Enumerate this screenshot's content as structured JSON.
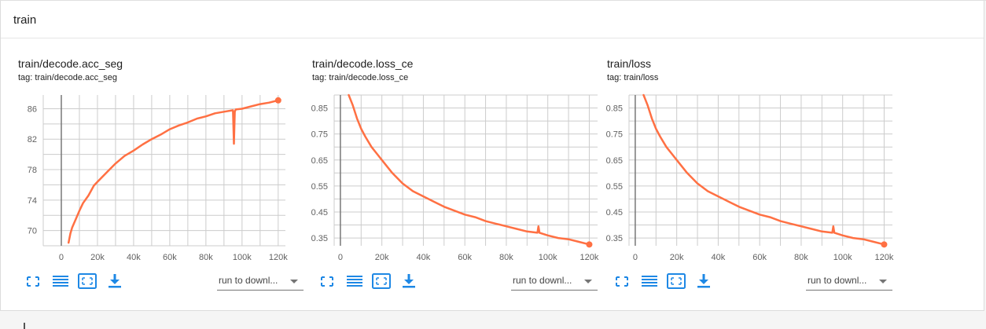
{
  "section": {
    "title": "train"
  },
  "colors": {
    "series": "#ff7043",
    "accent": "#1e88e5",
    "grid": "#cccccc",
    "axis_text": "#616161"
  },
  "icons": {
    "expand": "fullscreen-icon",
    "log_scale": "log-scale-icon",
    "fit_domain": "fit-domain-icon",
    "download": "download-icon"
  },
  "cards": [
    {
      "title": "train/decode.acc_seg",
      "tag": "tag: train/decode.acc_seg",
      "run_select": {
        "value": "run to downl..."
      }
    },
    {
      "title": "train/decode.loss_ce",
      "tag": "tag: train/decode.loss_ce",
      "run_select": {
        "value": "run to downl..."
      }
    },
    {
      "title": "train/loss",
      "tag": "tag: train/loss",
      "run_select": {
        "value": "run to downl..."
      }
    }
  ],
  "chart_data": [
    {
      "type": "line",
      "title": "train/decode.acc_seg",
      "xlim": [
        -10000,
        124000
      ],
      "ylim": [
        68,
        87.8
      ],
      "xticks": [
        0,
        20000,
        40000,
        60000,
        80000,
        100000,
        120000
      ],
      "xtick_labels": [
        "0",
        "20k",
        "40k",
        "60k",
        "80k",
        "100k",
        "120k"
      ],
      "yticks": [
        70,
        74,
        78,
        82,
        86
      ],
      "ytick_labels": [
        "70",
        "74",
        "78",
        "82",
        "86"
      ],
      "grid": true,
      "series": [
        {
          "color": "#ff7043",
          "x": [
            4000,
            5000,
            6000,
            8000,
            10000,
            12000,
            15000,
            18000,
            20000,
            25000,
            30000,
            35000,
            40000,
            45000,
            50000,
            55000,
            60000,
            65000,
            70000,
            75000,
            80000,
            85000,
            90000,
            95000,
            95500,
            96000,
            96500,
            100000,
            105000,
            110000,
            115000,
            120000
          ],
          "y": [
            68.4,
            69.6,
            70.4,
            71.5,
            72.6,
            73.6,
            74.6,
            75.9,
            76.4,
            77.6,
            78.8,
            79.8,
            80.5,
            81.3,
            82.0,
            82.6,
            83.3,
            83.8,
            84.2,
            84.7,
            85.0,
            85.4,
            85.6,
            85.8,
            81.4,
            85.6,
            85.9,
            86.0,
            86.3,
            86.6,
            86.8,
            87.1
          ]
        }
      ]
    },
    {
      "type": "line",
      "title": "train/decode.loss_ce",
      "xlim": [
        -3000,
        124000
      ],
      "ylim": [
        0.32,
        0.9
      ],
      "xticks": [
        0,
        20000,
        40000,
        60000,
        80000,
        100000,
        120000
      ],
      "xtick_labels": [
        "0",
        "20k",
        "40k",
        "60k",
        "80k",
        "100k",
        "120k"
      ],
      "yticks": [
        0.35,
        0.45,
        0.55,
        0.65,
        0.75,
        0.85
      ],
      "ytick_labels": [
        "0.35",
        "0.45",
        "0.55",
        "0.65",
        "0.75",
        "0.85"
      ],
      "grid": true,
      "series": [
        {
          "color": "#ff7043",
          "x": [
            4000,
            6000,
            8000,
            10000,
            12000,
            15000,
            18000,
            20000,
            25000,
            30000,
            35000,
            40000,
            45000,
            50000,
            55000,
            60000,
            65000,
            70000,
            75000,
            80000,
            85000,
            90000,
            95000,
            95500,
            96000,
            100000,
            105000,
            110000,
            115000,
            120000
          ],
          "y": [
            0.9,
            0.86,
            0.81,
            0.77,
            0.74,
            0.7,
            0.67,
            0.65,
            0.6,
            0.56,
            0.53,
            0.51,
            0.49,
            0.47,
            0.455,
            0.44,
            0.43,
            0.415,
            0.405,
            0.395,
            0.385,
            0.375,
            0.37,
            0.395,
            0.37,
            0.36,
            0.35,
            0.345,
            0.335,
            0.325
          ]
        }
      ]
    },
    {
      "type": "line",
      "title": "train/loss",
      "xlim": [
        -3000,
        124000
      ],
      "ylim": [
        0.32,
        0.9
      ],
      "xticks": [
        0,
        20000,
        40000,
        60000,
        80000,
        100000,
        120000
      ],
      "xtick_labels": [
        "0",
        "20k",
        "40k",
        "60k",
        "80k",
        "100k",
        "120k"
      ],
      "yticks": [
        0.35,
        0.45,
        0.55,
        0.65,
        0.75,
        0.85
      ],
      "ytick_labels": [
        "0.35",
        "0.45",
        "0.55",
        "0.65",
        "0.75",
        "0.85"
      ],
      "grid": true,
      "series": [
        {
          "color": "#ff7043",
          "x": [
            4000,
            6000,
            8000,
            10000,
            12000,
            15000,
            18000,
            20000,
            25000,
            30000,
            35000,
            40000,
            45000,
            50000,
            55000,
            60000,
            65000,
            70000,
            75000,
            80000,
            85000,
            90000,
            95000,
            95500,
            96000,
            100000,
            105000,
            110000,
            115000,
            120000
          ],
          "y": [
            0.9,
            0.86,
            0.81,
            0.77,
            0.74,
            0.7,
            0.67,
            0.65,
            0.6,
            0.56,
            0.53,
            0.51,
            0.49,
            0.47,
            0.455,
            0.44,
            0.43,
            0.415,
            0.405,
            0.395,
            0.385,
            0.375,
            0.37,
            0.395,
            0.37,
            0.36,
            0.35,
            0.345,
            0.335,
            0.325
          ]
        }
      ]
    }
  ]
}
